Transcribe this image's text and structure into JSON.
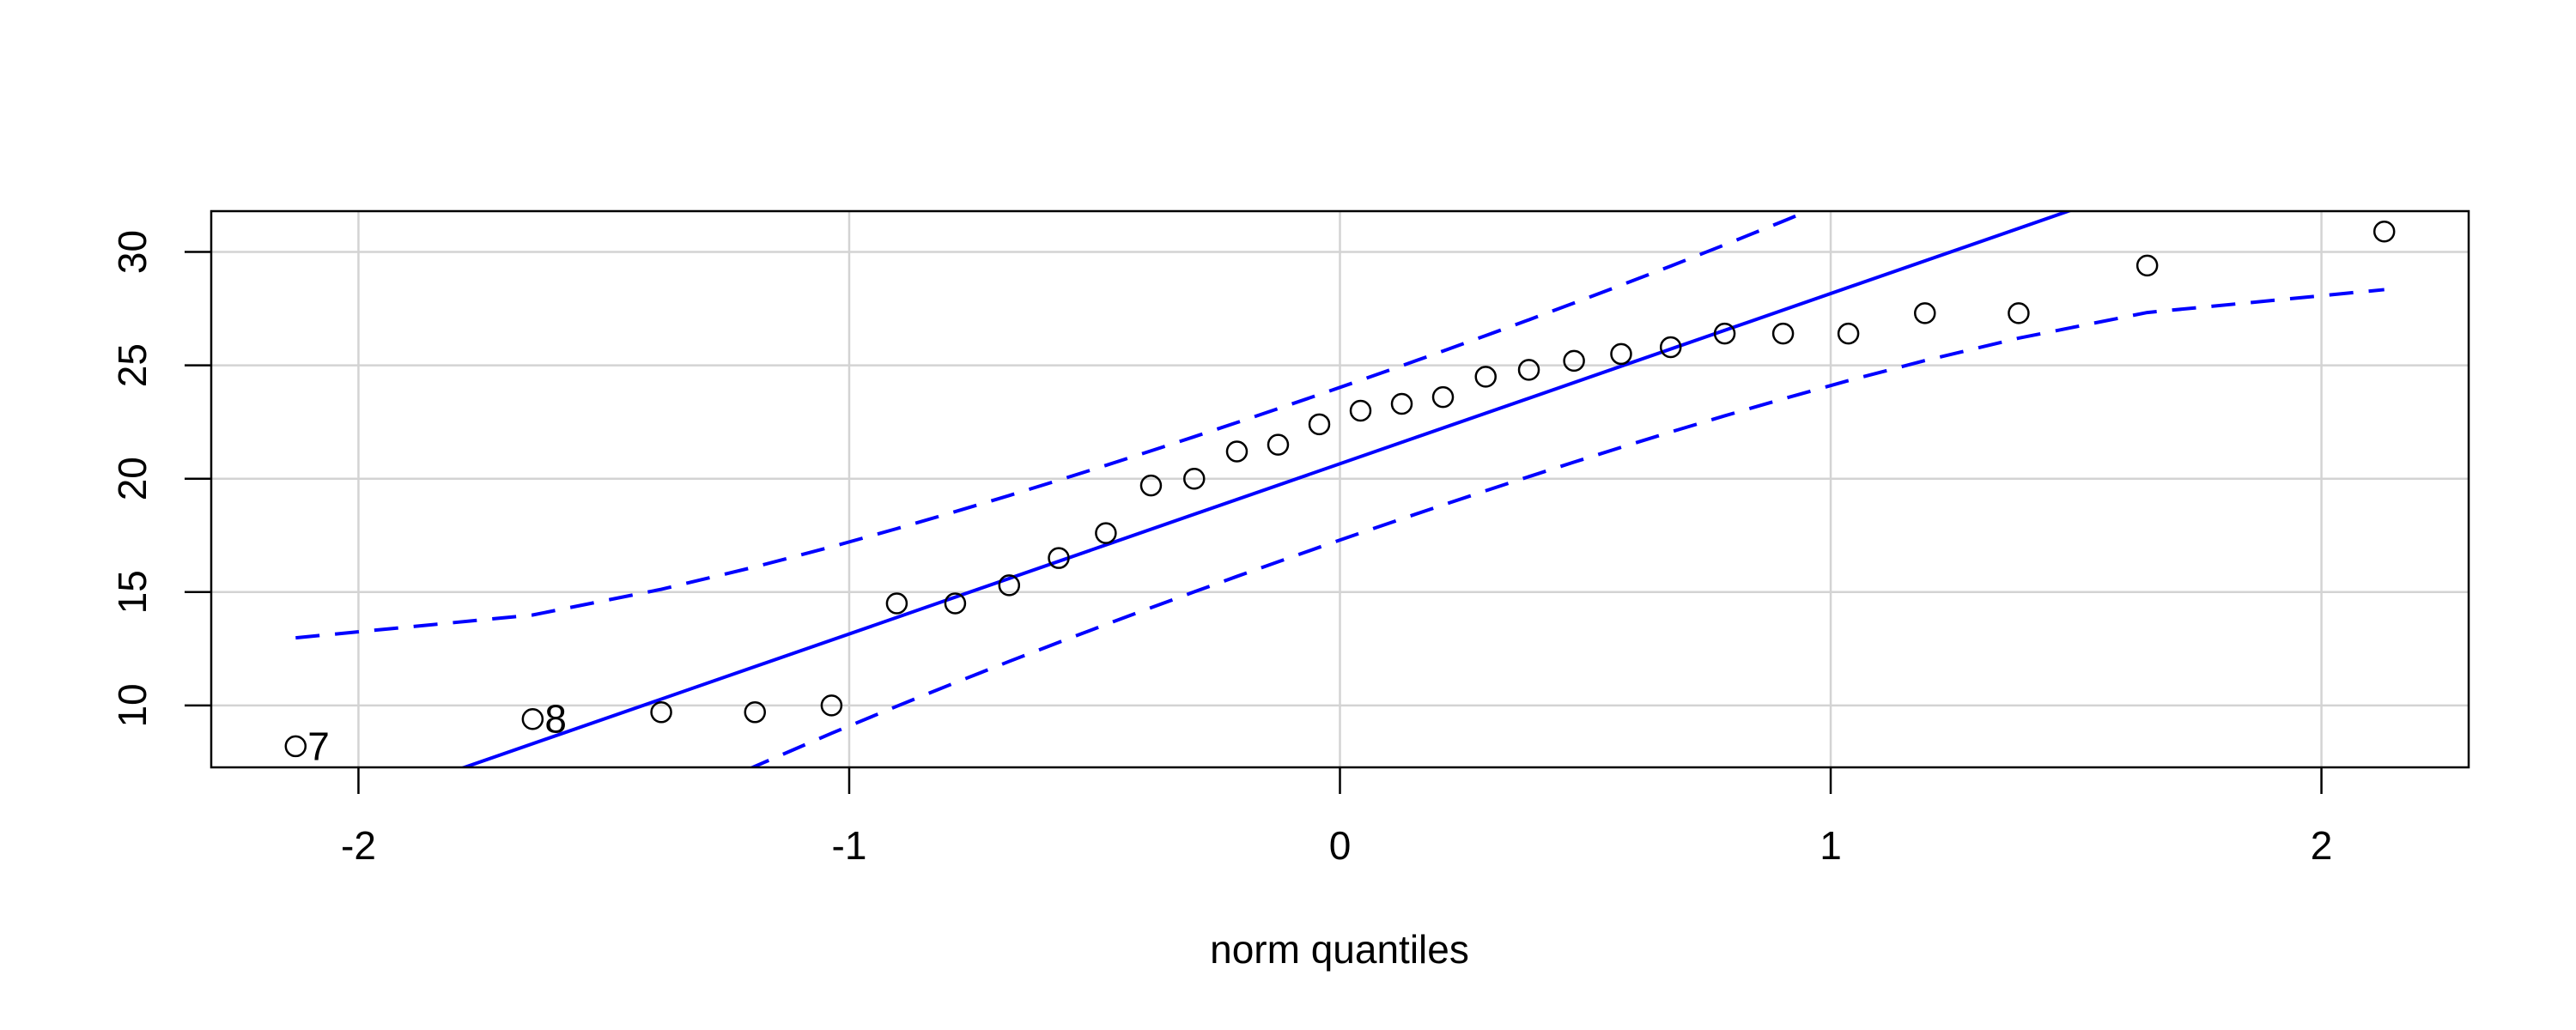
{
  "chart_data": {
    "type": "scatter",
    "title": "",
    "xlabel": "norm quantiles",
    "ylabel": "",
    "xlim": [
      -2.3,
      2.3
    ],
    "ylim": [
      7.27,
      31.8
    ],
    "grid": true,
    "x_ticks": [
      "-2",
      "-1",
      "0",
      "1",
      "2"
    ],
    "y_ticks": [
      "10",
      "15",
      "20",
      "25",
      "30"
    ],
    "x": [
      -2.128,
      -1.645,
      -1.383,
      -1.192,
      -1.036,
      -0.903,
      -0.784,
      -0.674,
      -0.573,
      -0.477,
      -0.385,
      -0.297,
      -0.21,
      -0.126,
      -0.042,
      0.042,
      0.126,
      0.21,
      0.297,
      0.385,
      0.477,
      0.573,
      0.674,
      0.784,
      0.903,
      1.036,
      1.192,
      1.383,
      1.645,
      2.128
    ],
    "y": [
      8.2,
      9.4,
      9.7,
      9.7,
      10.0,
      14.5,
      14.5,
      15.3,
      16.5,
      17.6,
      19.7,
      20.0,
      21.2,
      21.5,
      22.4,
      23.0,
      23.3,
      23.6,
      24.5,
      24.8,
      25.2,
      25.5,
      25.8,
      26.4,
      26.4,
      26.4,
      27.3,
      27.3,
      29.4,
      30.9
    ],
    "point_labels": [
      {
        "index": 0,
        "text": "7"
      },
      {
        "index": 1,
        "text": "8"
      }
    ],
    "reference_line": {
      "intercept": 20.66,
      "slope": 7.506
    },
    "envelope_level": 0.95,
    "colors": {
      "line": "#0000ff",
      "points": "#000000",
      "grid": "#d3d3d3"
    }
  }
}
